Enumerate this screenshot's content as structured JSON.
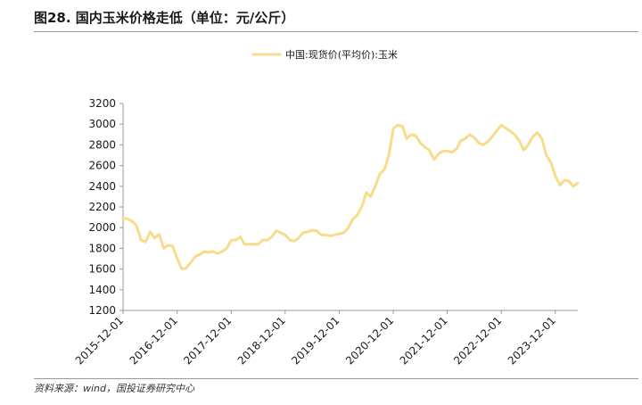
{
  "title": "图28. 国内玉米价格走低（单位：元/公斤）",
  "source": "资料来源：wind，国投证券研究中心",
  "chart_data": {
    "type": "line",
    "ylim": [
      1200,
      3200
    ],
    "yticks": [
      1200,
      1400,
      1600,
      1800,
      2000,
      2200,
      2400,
      2600,
      2800,
      3000,
      3200
    ],
    "xlim": [
      "2015-12-01",
      "2024-05-01"
    ],
    "xticks": [
      "2015-12-01",
      "2016-12-01",
      "2017-12-01",
      "2018-12-01",
      "2019-12-01",
      "2020-12-01",
      "2021-12-01",
      "2022-12-01",
      "2023-12-01"
    ],
    "legend_position": "top-center",
    "grid": false,
    "series": [
      {
        "name": "中国:现货价(平均价):玉米",
        "color": "#f7dc8c",
        "points": [
          [
            "2015-12-01",
            2090
          ],
          [
            "2016-01-01",
            2085
          ],
          [
            "2016-02-01",
            2060
          ],
          [
            "2016-03-01",
            2020
          ],
          [
            "2016-04-01",
            1880
          ],
          [
            "2016-05-01",
            1860
          ],
          [
            "2016-06-01",
            1960
          ],
          [
            "2016-07-01",
            1900
          ],
          [
            "2016-08-01",
            1935
          ],
          [
            "2016-09-01",
            1800
          ],
          [
            "2016-10-01",
            1830
          ],
          [
            "2016-11-01",
            1820
          ],
          [
            "2016-12-01",
            1700
          ],
          [
            "2017-01-01",
            1600
          ],
          [
            "2017-02-01",
            1610
          ],
          [
            "2017-03-01",
            1660
          ],
          [
            "2017-04-01",
            1720
          ],
          [
            "2017-05-01",
            1740
          ],
          [
            "2017-06-01",
            1770
          ],
          [
            "2017-07-01",
            1760
          ],
          [
            "2017-08-01",
            1770
          ],
          [
            "2017-09-01",
            1750
          ],
          [
            "2017-10-01",
            1770
          ],
          [
            "2017-11-01",
            1800
          ],
          [
            "2017-12-01",
            1880
          ],
          [
            "2018-01-01",
            1880
          ],
          [
            "2018-02-01",
            1910
          ],
          [
            "2018-03-01",
            1840
          ],
          [
            "2018-04-01",
            1840
          ],
          [
            "2018-05-01",
            1840
          ],
          [
            "2018-06-01",
            1840
          ],
          [
            "2018-07-01",
            1880
          ],
          [
            "2018-08-01",
            1880
          ],
          [
            "2018-09-01",
            1910
          ],
          [
            "2018-10-01",
            1970
          ],
          [
            "2018-11-01",
            1950
          ],
          [
            "2018-12-01",
            1930
          ],
          [
            "2019-01-01",
            1880
          ],
          [
            "2019-02-01",
            1870
          ],
          [
            "2019-03-01",
            1900
          ],
          [
            "2019-04-01",
            1950
          ],
          [
            "2019-05-01",
            1960
          ],
          [
            "2019-06-01",
            1975
          ],
          [
            "2019-07-01",
            1970
          ],
          [
            "2019-08-01",
            1930
          ],
          [
            "2019-09-01",
            1930
          ],
          [
            "2019-10-01",
            1920
          ],
          [
            "2019-11-01",
            1930
          ],
          [
            "2019-12-01",
            1940
          ],
          [
            "2020-01-01",
            1950
          ],
          [
            "2020-02-01",
            2000
          ],
          [
            "2020-03-01",
            2080
          ],
          [
            "2020-04-01",
            2120
          ],
          [
            "2020-05-01",
            2200
          ],
          [
            "2020-06-01",
            2340
          ],
          [
            "2020-07-01",
            2300
          ],
          [
            "2020-08-01",
            2400
          ],
          [
            "2020-09-01",
            2520
          ],
          [
            "2020-10-01",
            2560
          ],
          [
            "2020-11-01",
            2700
          ],
          [
            "2020-12-01",
            2960
          ],
          [
            "2021-01-01",
            2990
          ],
          [
            "2021-02-01",
            2980
          ],
          [
            "2021-03-01",
            2860
          ],
          [
            "2021-04-01",
            2900
          ],
          [
            "2021-05-01",
            2890
          ],
          [
            "2021-06-01",
            2820
          ],
          [
            "2021-07-01",
            2780
          ],
          [
            "2021-08-01",
            2750
          ],
          [
            "2021-09-01",
            2660
          ],
          [
            "2021-10-01",
            2710
          ],
          [
            "2021-11-01",
            2740
          ],
          [
            "2021-12-01",
            2740
          ],
          [
            "2022-01-01",
            2730
          ],
          [
            "2022-02-01",
            2760
          ],
          [
            "2022-03-01",
            2840
          ],
          [
            "2022-04-01",
            2860
          ],
          [
            "2022-05-01",
            2900
          ],
          [
            "2022-06-01",
            2870
          ],
          [
            "2022-07-01",
            2820
          ],
          [
            "2022-08-01",
            2800
          ],
          [
            "2022-09-01",
            2830
          ],
          [
            "2022-10-01",
            2880
          ],
          [
            "2022-11-01",
            2940
          ],
          [
            "2022-12-01",
            2990
          ],
          [
            "2023-01-01",
            2960
          ],
          [
            "2023-02-01",
            2930
          ],
          [
            "2023-03-01",
            2900
          ],
          [
            "2023-04-01",
            2840
          ],
          [
            "2023-05-01",
            2750
          ],
          [
            "2023-06-01",
            2800
          ],
          [
            "2023-07-01",
            2880
          ],
          [
            "2023-08-01",
            2920
          ],
          [
            "2023-09-01",
            2860
          ],
          [
            "2023-10-01",
            2700
          ],
          [
            "2023-11-01",
            2630
          ],
          [
            "2023-12-01",
            2500
          ],
          [
            "2024-01-01",
            2410
          ],
          [
            "2024-02-01",
            2460
          ],
          [
            "2024-03-01",
            2450
          ],
          [
            "2024-04-01",
            2400
          ],
          [
            "2024-05-01",
            2430
          ]
        ]
      }
    ]
  }
}
